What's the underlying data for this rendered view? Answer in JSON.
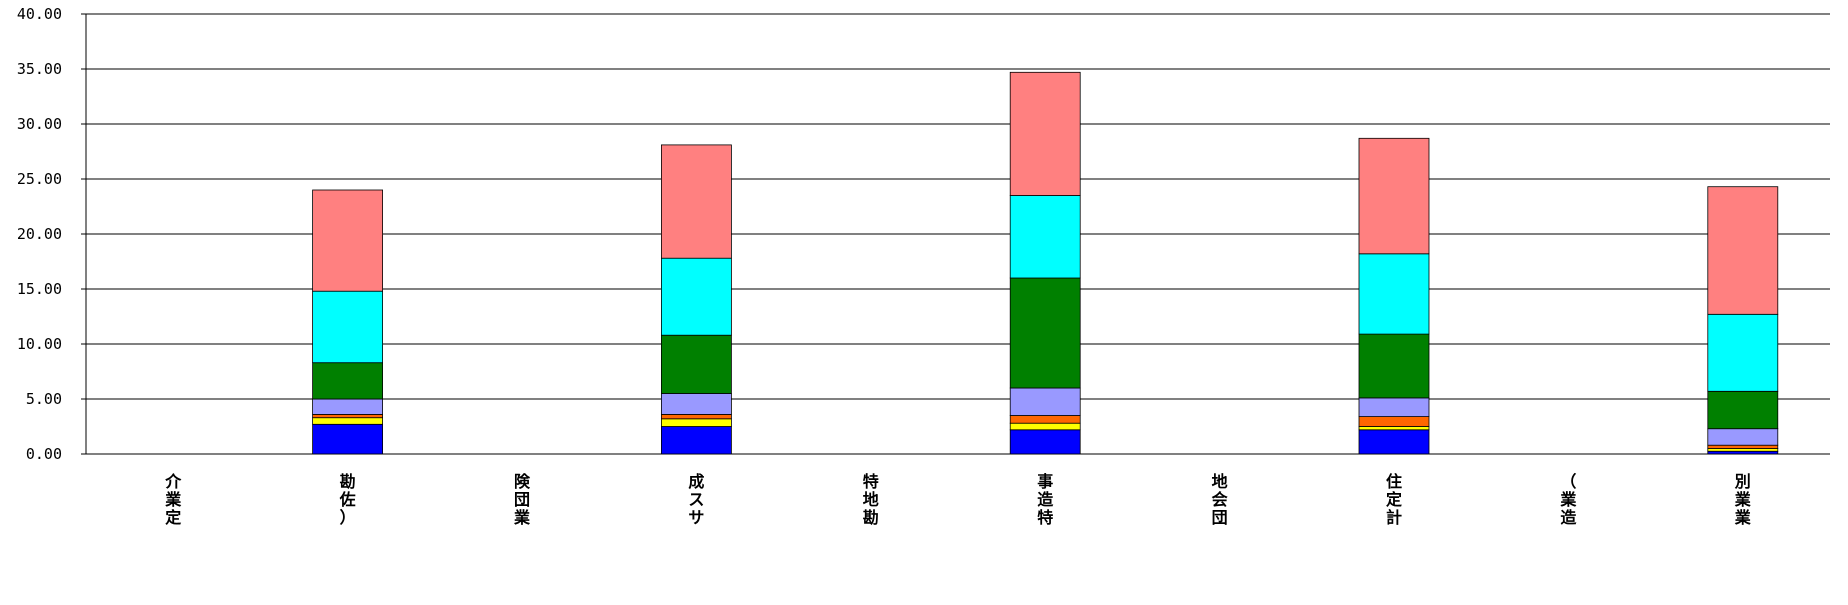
{
  "chart_data": {
    "type": "bar",
    "stacked": true,
    "grid": true,
    "legend": "none",
    "ylim": [
      0,
      40
    ],
    "y_ticks": [
      "0.00",
      "5.00",
      "10.00",
      "15.00",
      "20.00",
      "25.00",
      "30.00",
      "35.00",
      "40.00"
    ],
    "categories": [
      "介業定",
      "勘佐）",
      "険団業",
      "成スサ",
      "特地勘",
      "事造特",
      "地会団",
      "住定計",
      "（業造",
      "別業業"
    ],
    "series": [
      {
        "color": "#0000ff",
        "values": [
          0,
          2.7,
          0,
          2.5,
          0,
          2.2,
          0,
          2.2,
          0,
          0.25
        ]
      },
      {
        "color": "#ffff00",
        "values": [
          0,
          0.6,
          0,
          0.7,
          0,
          0.6,
          0,
          0.3,
          0,
          0.25
        ]
      },
      {
        "color": "#ff6600",
        "values": [
          0,
          0.3,
          0,
          0.4,
          0,
          0.7,
          0,
          0.9,
          0,
          0.3
        ]
      },
      {
        "color": "#9999ff",
        "values": [
          0,
          1.4,
          0,
          1.9,
          0,
          2.5,
          0,
          1.7,
          0,
          1.5
        ]
      },
      {
        "color": "#008000",
        "values": [
          0,
          3.3,
          0,
          5.3,
          0,
          10.0,
          0,
          5.8,
          0,
          3.4
        ]
      },
      {
        "color": "#00ffff",
        "values": [
          0,
          6.5,
          0,
          7.0,
          0,
          7.5,
          0,
          7.3,
          0,
          7.0
        ]
      },
      {
        "color": "#ff8080",
        "values": [
          0,
          9.2,
          0,
          10.3,
          0,
          11.2,
          0,
          10.5,
          0,
          11.6
        ]
      }
    ]
  }
}
